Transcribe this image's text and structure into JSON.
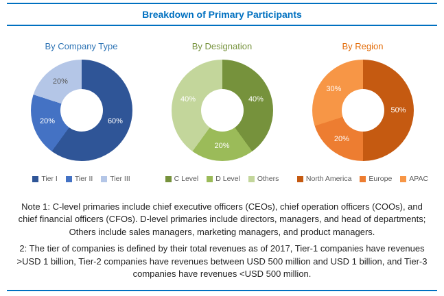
{
  "header": {
    "title": "Breakdown of Primary Participants"
  },
  "colors": {
    "rule": "#0070C0",
    "main_title": "#0070C0",
    "legend_text": "#595959",
    "note_text": "#1f1f1f"
  },
  "chart_data": [
    {
      "type": "pie",
      "subtype": "donut",
      "title": "By Company Type",
      "title_color": "#2E74B5",
      "categories": [
        "Tier I",
        "Tier II",
        "Tier III"
      ],
      "values": [
        60,
        20,
        20
      ],
      "labels": [
        "60%",
        "20%",
        "20%"
      ],
      "slice_colors": [
        "#2F5597",
        "#4472C4",
        "#B4C6E7"
      ],
      "label_colors": [
        "#FFFFFF",
        "#FFFFFF",
        "#595959"
      ],
      "legend_position": "bottom"
    },
    {
      "type": "pie",
      "subtype": "donut",
      "title": "By Designation",
      "title_color": "#76923C",
      "categories": [
        "C Level",
        "D Level",
        "Others"
      ],
      "values": [
        40,
        20,
        40
      ],
      "labels": [
        "40%",
        "20%",
        "40%"
      ],
      "slice_colors": [
        "#76923C",
        "#9BBB59",
        "#C3D69B"
      ],
      "label_colors": [
        "#FFFFFF",
        "#FFFFFF",
        "#FFFFFF"
      ],
      "legend_position": "bottom"
    },
    {
      "type": "pie",
      "subtype": "donut",
      "title": "By Region",
      "title_color": "#E36C09",
      "categories": [
        "North America",
        "Europe",
        "APAC"
      ],
      "values": [
        50,
        20,
        30
      ],
      "labels": [
        "50%",
        "20%",
        "30%"
      ],
      "slice_colors": [
        "#C55A11",
        "#ED7D31",
        "#F79646"
      ],
      "label_colors": [
        "#FFFFFF",
        "#FFFFFF",
        "#FFFFFF"
      ],
      "legend_position": "bottom"
    }
  ],
  "notes": {
    "note1": "Note 1: C-level primaries include chief executive officers (CEOs), chief operation officers (COOs), and chief financial officers (CFOs). D-level primaries include directors, managers, and head of departments; Others include sales managers, marketing managers, and product managers.",
    "note2": "2: The tier of companies is defined by their total revenues as of 2017, Tier-1 companies have revenues >USD 1 billion, Tier-2 companies have revenues between USD 500 million and USD 1 billion, and Tier-3 companies have revenues <USD 500 million."
  }
}
